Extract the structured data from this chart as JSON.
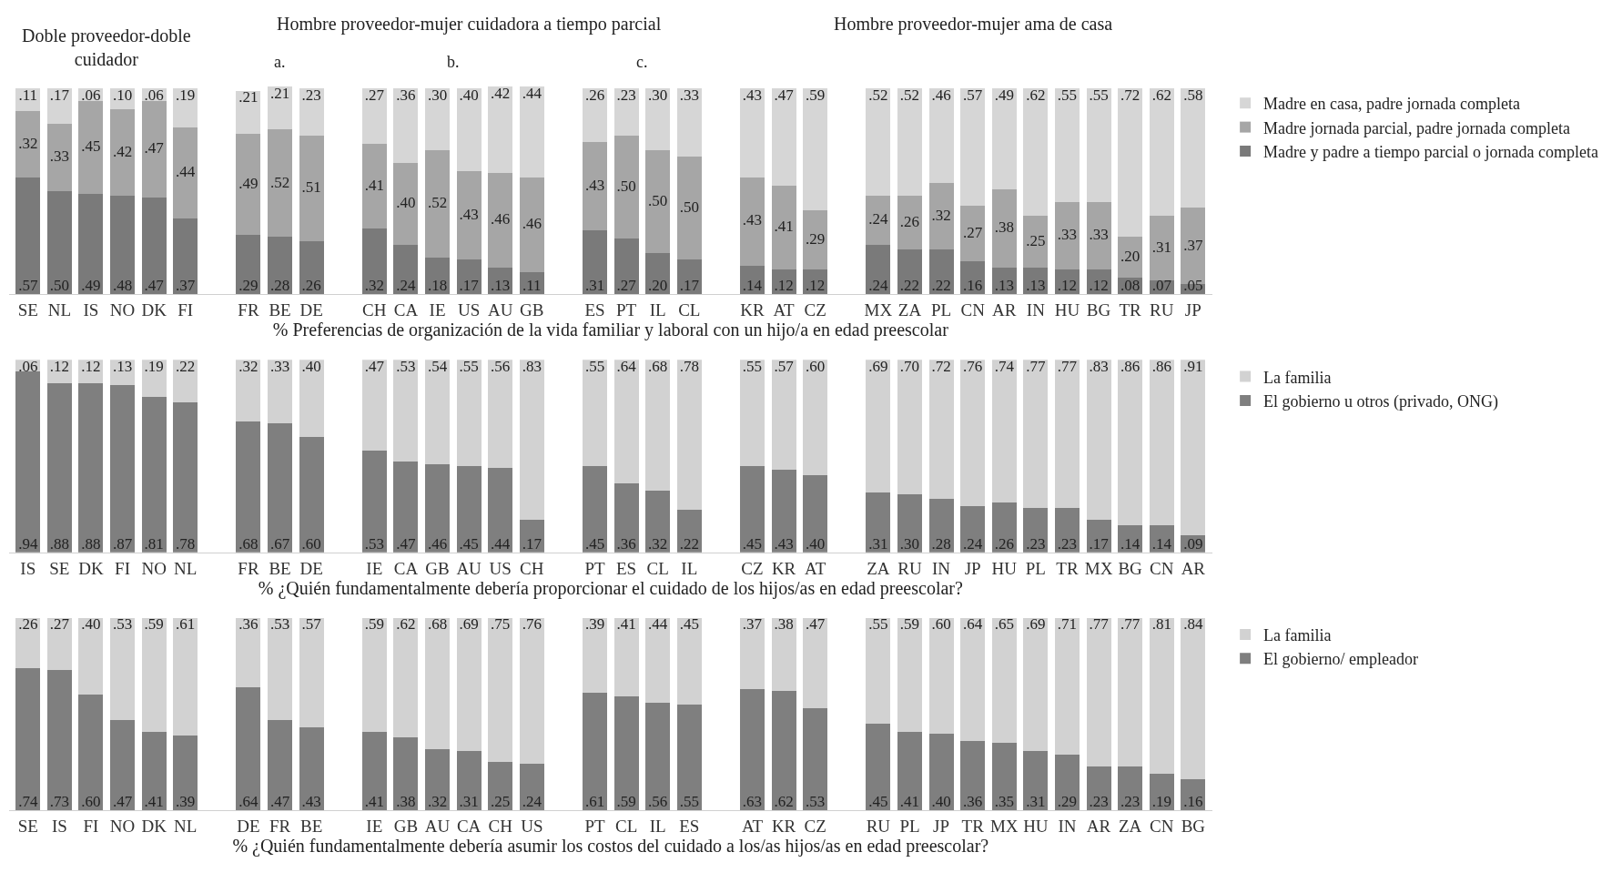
{
  "chart_data": [
    {
      "type": "bar",
      "stacked": true,
      "legend": "right",
      "tick_labels": "x",
      "xlabel": "% Preferencias de organización de la vida familiar y laboral con un hijo/a en edad preescolar",
      "annotations": [
        "Doble proveedor-doble cuidador",
        "Hombre proveedor-mujer cuidadora a tiempo parcial",
        "Hombre proveedor-mujer ama de casa",
        "a.",
        "b.",
        "c."
      ],
      "categories": [
        "SE",
        "NL",
        "IS",
        "NO",
        "DK",
        "FI",
        null,
        "FR",
        "BE",
        "DE",
        null,
        "CH",
        "CA",
        "IE",
        "US",
        "AU",
        "GB",
        null,
        "ES",
        "PT",
        "IL",
        "CL",
        null,
        "KR",
        "AT",
        "CZ",
        null,
        "MX",
        "ZA",
        "PL",
        "CN",
        "AR",
        "IN",
        "HU",
        "BG",
        "TR",
        "RU",
        "JP"
      ],
      "series": [
        {
          "name": "Madre y padre a tiempo parcial o jornada completa",
          "color": "#7a7a7a",
          "values": [
            0.57,
            0.5,
            0.49,
            0.48,
            0.47,
            0.37,
            null,
            0.29,
            0.28,
            0.26,
            null,
            0.32,
            0.24,
            0.18,
            0.17,
            0.13,
            0.11,
            null,
            0.31,
            0.27,
            0.2,
            0.17,
            null,
            0.14,
            0.12,
            0.12,
            null,
            0.24,
            0.22,
            0.22,
            0.16,
            0.13,
            0.13,
            0.12,
            0.12,
            0.08,
            0.07,
            0.05
          ],
          "value_labels": [
            ".57",
            ".50",
            ".49",
            ".48",
            ".47",
            ".37",
            null,
            ".29",
            ".28",
            ".26",
            null,
            ".32",
            ".24",
            ".18",
            ".17",
            ".13",
            ".11",
            null,
            ".31",
            ".27",
            ".20",
            ".17",
            null,
            ".14",
            ".12",
            ".12",
            null,
            ".24",
            ".22",
            ".22",
            ".16",
            ".13",
            ".13",
            ".12",
            ".12",
            ".08",
            ".07",
            ".05"
          ]
        },
        {
          "name": "Madre jornada parcial, padre jornada completa",
          "color": "#a6a6a6",
          "values": [
            0.32,
            0.33,
            0.45,
            0.42,
            0.47,
            0.44,
            null,
            0.49,
            0.52,
            0.51,
            null,
            0.41,
            0.4,
            0.52,
            0.43,
            0.46,
            0.46,
            null,
            0.43,
            0.5,
            0.5,
            0.5,
            null,
            0.43,
            0.41,
            0.29,
            null,
            0.24,
            0.26,
            0.32,
            0.27,
            0.38,
            0.25,
            0.33,
            0.33,
            0.2,
            0.31,
            0.37
          ],
          "value_labels": [
            ".32",
            ".33",
            ".45",
            ".42",
            ".47",
            ".44",
            null,
            ".49",
            ".52",
            ".51",
            null,
            ".41",
            ".40",
            ".52",
            ".43",
            ".46",
            ".46",
            null,
            ".43",
            ".50",
            ".50",
            ".50",
            null,
            ".43",
            ".41",
            ".29",
            null,
            ".24",
            ".26",
            ".32",
            ".27",
            ".38",
            ".25",
            ".33",
            ".33",
            ".20",
            ".31",
            ".37"
          ]
        },
        {
          "name": "Madre en casa, padre jornada completa",
          "color": "#d6d6d6",
          "values": [
            0.11,
            0.17,
            0.06,
            0.1,
            0.06,
            0.19,
            null,
            0.21,
            0.21,
            0.23,
            null,
            0.27,
            0.36,
            0.3,
            0.4,
            0.42,
            0.44,
            null,
            0.26,
            0.23,
            0.3,
            0.33,
            null,
            0.43,
            0.47,
            0.59,
            null,
            0.52,
            0.52,
            0.46,
            0.57,
            0.49,
            0.62,
            0.55,
            0.55,
            0.72,
            0.62,
            0.58
          ],
          "value_labels": [
            ".11",
            ".17",
            ".06",
            ".10",
            ".06",
            ".19",
            null,
            ".21",
            ".21",
            ".23",
            null,
            ".27",
            ".36",
            ".30",
            ".40",
            ".42",
            ".44",
            null,
            ".26",
            ".23",
            ".30",
            ".33",
            null,
            ".43",
            ".47",
            ".59",
            null,
            ".52",
            ".52",
            ".46",
            ".57",
            ".49",
            ".62",
            ".55",
            ".55",
            ".72",
            ".62",
            ".58"
          ]
        }
      ]
    },
    {
      "type": "bar",
      "stacked": true,
      "legend": "right",
      "tick_labels": "x",
      "xlabel": "% ¿Quién fundamentalmente debería proporcionar el cuidado de los hijos/as en edad preescolar?",
      "categories": [
        "IS",
        "SE",
        "DK",
        "FI",
        "NO",
        "NL",
        null,
        "FR",
        "BE",
        "DE",
        null,
        "IE",
        "CA",
        "GB",
        "AU",
        "US",
        "CH",
        null,
        "PT",
        "ES",
        "CL",
        "IL",
        null,
        "CZ",
        "KR",
        "AT",
        null,
        "ZA",
        "RU",
        "IN",
        "JP",
        "HU",
        "PL",
        "TR",
        "MX",
        "BG",
        "CN",
        "AR"
      ],
      "series": [
        {
          "name": "El gobierno u otros (privado, ONG)",
          "color": "#7f7f7f",
          "values": [
            0.94,
            0.88,
            0.88,
            0.87,
            0.81,
            0.78,
            null,
            0.68,
            0.67,
            0.6,
            null,
            0.53,
            0.47,
            0.46,
            0.45,
            0.44,
            0.17,
            null,
            0.45,
            0.36,
            0.32,
            0.22,
            null,
            0.45,
            0.43,
            0.4,
            null,
            0.31,
            0.3,
            0.28,
            0.24,
            0.26,
            0.23,
            0.23,
            0.17,
            0.14,
            0.14,
            0.09
          ],
          "value_labels": [
            ".94",
            ".88",
            ".88",
            ".87",
            ".81",
            ".78",
            null,
            ".68",
            ".67",
            ".60",
            null,
            ".53",
            ".47",
            ".46",
            ".45",
            ".44",
            ".17",
            null,
            ".45",
            ".36",
            ".32",
            ".22",
            null,
            ".45",
            ".43",
            ".40",
            null,
            ".31",
            ".30",
            ".28",
            ".24",
            ".26",
            ".23",
            ".23",
            ".17",
            ".14",
            ".14",
            ".09"
          ]
        },
        {
          "name": "La familia",
          "color": "#d2d2d2",
          "values": [
            0.06,
            0.12,
            0.12,
            0.13,
            0.19,
            0.22,
            null,
            0.32,
            0.33,
            0.4,
            null,
            0.47,
            0.53,
            0.54,
            0.55,
            0.56,
            0.83,
            null,
            0.55,
            0.64,
            0.68,
            0.78,
            null,
            0.55,
            0.57,
            0.6,
            null,
            0.69,
            0.7,
            0.72,
            0.76,
            0.74,
            0.77,
            0.77,
            0.83,
            0.86,
            0.86,
            0.91
          ],
          "value_labels": [
            ".06",
            ".12",
            ".12",
            ".13",
            ".19",
            ".22",
            null,
            ".32",
            ".33",
            ".40",
            null,
            ".47",
            ".53",
            ".54",
            ".55",
            ".56",
            ".83",
            null,
            ".55",
            ".64",
            ".68",
            ".78",
            null,
            ".55",
            ".57",
            ".60",
            null,
            ".69",
            ".70",
            ".72",
            ".76",
            ".74",
            ".77",
            ".77",
            ".83",
            ".86",
            ".86",
            ".91"
          ]
        }
      ]
    },
    {
      "type": "bar",
      "stacked": true,
      "legend": "right",
      "tick_labels": "x",
      "xlabel": "% ¿Quién fundamentalmente debería asumir los costos del cuidado a los/as hijos/as en edad preescolar?",
      "categories": [
        "SE",
        "IS",
        "FI",
        "NO",
        "DK",
        "NL",
        null,
        "DE",
        "FR",
        "BE",
        null,
        "IE",
        "GB",
        "AU",
        "CA",
        "CH",
        "US",
        null,
        "PT",
        "CL",
        "IL",
        "ES",
        null,
        "AT",
        "KR",
        "CZ",
        null,
        "RU",
        "PL",
        "JP",
        "TR",
        "MX",
        "HU",
        "IN",
        "AR",
        "ZA",
        "CN",
        "BG"
      ],
      "series": [
        {
          "name": "El gobierno/ empleador",
          "color": "#7f7f7f",
          "values": [
            0.74,
            0.73,
            0.6,
            0.47,
            0.41,
            0.39,
            null,
            0.64,
            0.47,
            0.43,
            null,
            0.41,
            0.38,
            0.32,
            0.31,
            0.25,
            0.24,
            null,
            0.61,
            0.59,
            0.56,
            0.55,
            null,
            0.63,
            0.62,
            0.53,
            null,
            0.45,
            0.41,
            0.4,
            0.36,
            0.35,
            0.31,
            0.29,
            0.23,
            0.23,
            0.19,
            0.16
          ],
          "value_labels": [
            ".74",
            ".73",
            ".60",
            ".47",
            ".41",
            ".39",
            null,
            ".64",
            ".47",
            ".43",
            null,
            ".41",
            ".38",
            ".32",
            ".31",
            ".25",
            ".24",
            null,
            ".61",
            ".59",
            ".56",
            ".55",
            null,
            ".63",
            ".62",
            ".53",
            null,
            ".45",
            ".41",
            ".40",
            ".36",
            ".35",
            ".31",
            ".29",
            ".23",
            ".23",
            ".19",
            ".16"
          ]
        },
        {
          "name": "La familia",
          "color": "#d2d2d2",
          "values": [
            0.26,
            0.27,
            0.4,
            0.53,
            0.59,
            0.61,
            null,
            0.36,
            0.53,
            0.57,
            null,
            0.59,
            0.62,
            0.68,
            0.69,
            0.75,
            0.76,
            null,
            0.39,
            0.41,
            0.44,
            0.45,
            null,
            0.37,
            0.38,
            0.47,
            null,
            0.55,
            0.59,
            0.6,
            0.64,
            0.65,
            0.69,
            0.71,
            0.77,
            0.77,
            0.81,
            0.84
          ],
          "value_labels": [
            ".26",
            ".27",
            ".40",
            ".53",
            ".59",
            ".61",
            null,
            ".36",
            ".53",
            ".57",
            null,
            ".59",
            ".62",
            ".68",
            ".69",
            ".75",
            ".76",
            null,
            ".39",
            ".41",
            ".44",
            ".45",
            null,
            ".37",
            ".38",
            ".47",
            null,
            ".55",
            ".59",
            ".60",
            ".64",
            ".65",
            ".69",
            ".71",
            ".77",
            ".77",
            ".81",
            ".84"
          ]
        }
      ]
    }
  ]
}
